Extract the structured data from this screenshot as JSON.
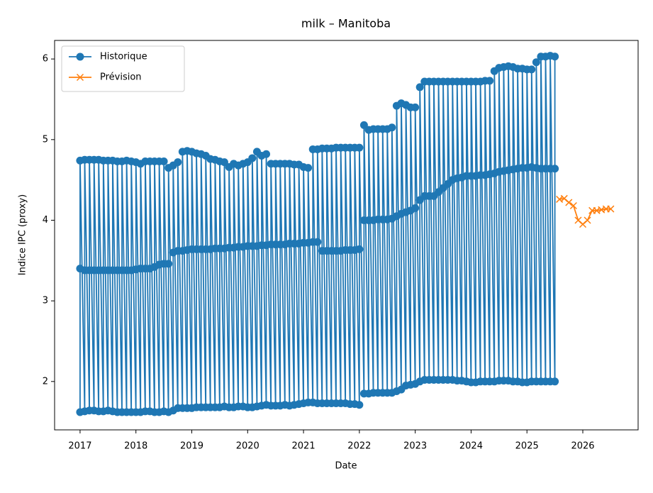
{
  "chart_data": {
    "type": "line",
    "title": "milk – Manitoba",
    "x_label": "Date",
    "y_label": "Indice IPC (proxy)",
    "xlim": [
      2016.544,
      2026.99
    ],
    "ylim": [
      1.4,
      6.23
    ],
    "xticks": [
      2017,
      2018,
      2019,
      2020,
      2021,
      2022,
      2023,
      2024,
      2025,
      2026
    ],
    "yticks": [
      2,
      3,
      4,
      5,
      6
    ],
    "legend": "upper left",
    "series": [
      {
        "name": "Historique",
        "color": "#1f77b4",
        "marker": "o",
        "x": [
          2017,
          2017,
          2017,
          2017.083,
          2017.083,
          2017.083,
          2017.167,
          2017.167,
          2017.167,
          2017.25,
          2017.25,
          2017.25,
          2017.333,
          2017.333,
          2017.333,
          2017.417,
          2017.417,
          2017.417,
          2017.5,
          2017.5,
          2017.5,
          2017.583,
          2017.583,
          2017.583,
          2017.667,
          2017.667,
          2017.667,
          2017.75,
          2017.75,
          2017.75,
          2017.833,
          2017.833,
          2017.833,
          2017.917,
          2017.917,
          2017.917,
          2018,
          2018,
          2018,
          2018.083,
          2018.083,
          2018.083,
          2018.167,
          2018.167,
          2018.167,
          2018.25,
          2018.25,
          2018.25,
          2018.333,
          2018.333,
          2018.333,
          2018.417,
          2018.417,
          2018.417,
          2018.5,
          2018.5,
          2018.5,
          2018.583,
          2018.583,
          2018.583,
          2018.667,
          2018.667,
          2018.667,
          2018.75,
          2018.75,
          2018.75,
          2018.833,
          2018.833,
          2018.833,
          2018.917,
          2018.917,
          2018.917,
          2019,
          2019,
          2019,
          2019.083,
          2019.083,
          2019.083,
          2019.167,
          2019.167,
          2019.167,
          2019.25,
          2019.25,
          2019.25,
          2019.333,
          2019.333,
          2019.333,
          2019.417,
          2019.417,
          2019.417,
          2019.5,
          2019.5,
          2019.5,
          2019.583,
          2019.583,
          2019.583,
          2019.667,
          2019.667,
          2019.667,
          2019.75,
          2019.75,
          2019.75,
          2019.833,
          2019.833,
          2019.833,
          2019.917,
          2019.917,
          2019.917,
          2020,
          2020,
          2020,
          2020.083,
          2020.083,
          2020.083,
          2020.167,
          2020.167,
          2020.167,
          2020.25,
          2020.25,
          2020.25,
          2020.333,
          2020.333,
          2020.333,
          2020.417,
          2020.417,
          2020.417,
          2020.5,
          2020.5,
          2020.5,
          2020.583,
          2020.583,
          2020.583,
          2020.667,
          2020.667,
          2020.667,
          2020.75,
          2020.75,
          2020.75,
          2020.833,
          2020.833,
          2020.833,
          2020.917,
          2020.917,
          2020.917,
          2021,
          2021,
          2021,
          2021.083,
          2021.083,
          2021.083,
          2021.167,
          2021.167,
          2021.167,
          2021.25,
          2021.25,
          2021.25,
          2021.333,
          2021.333,
          2021.333,
          2021.417,
          2021.417,
          2021.417,
          2021.5,
          2021.5,
          2021.5,
          2021.583,
          2021.583,
          2021.583,
          2021.667,
          2021.667,
          2021.667,
          2021.75,
          2021.75,
          2021.75,
          2021.833,
          2021.833,
          2021.833,
          2021.917,
          2021.917,
          2021.917,
          2022,
          2022,
          2022,
          2022.083,
          2022.083,
          2022.083,
          2022.167,
          2022.167,
          2022.167,
          2022.25,
          2022.25,
          2022.25,
          2022.333,
          2022.333,
          2022.333,
          2022.417,
          2022.417,
          2022.417,
          2022.5,
          2022.5,
          2022.5,
          2022.583,
          2022.583,
          2022.583,
          2022.667,
          2022.667,
          2022.667,
          2022.75,
          2022.75,
          2022.75,
          2022.833,
          2022.833,
          2022.833,
          2022.917,
          2022.917,
          2022.917,
          2023,
          2023,
          2023,
          2023.083,
          2023.083,
          2023.083,
          2023.167,
          2023.167,
          2023.167,
          2023.25,
          2023.25,
          2023.25,
          2023.333,
          2023.333,
          2023.333,
          2023.417,
          2023.417,
          2023.417,
          2023.5,
          2023.5,
          2023.5,
          2023.583,
          2023.583,
          2023.583,
          2023.667,
          2023.667,
          2023.667,
          2023.75,
          2023.75,
          2023.75,
          2023.833,
          2023.833,
          2023.833,
          2023.917,
          2023.917,
          2023.917,
          2024,
          2024,
          2024,
          2024.083,
          2024.083,
          2024.083,
          2024.167,
          2024.167,
          2024.167,
          2024.25,
          2024.25,
          2024.25,
          2024.333,
          2024.333,
          2024.333,
          2024.417,
          2024.417,
          2024.417,
          2024.5,
          2024.5,
          2024.5,
          2024.583,
          2024.583,
          2024.583,
          2024.667,
          2024.667,
          2024.667,
          2024.75,
          2024.75,
          2024.75,
          2024.833,
          2024.833,
          2024.833,
          2024.917,
          2024.917,
          2024.917,
          2025,
          2025,
          2025,
          2025.083,
          2025.083,
          2025.083,
          2025.167,
          2025.167,
          2025.167,
          2025.25,
          2025.25,
          2025.25,
          2025.333,
          2025.333,
          2025.333,
          2025.417,
          2025.417,
          2025.417,
          2025.5,
          2025.5,
          2025.5
        ],
        "values": [
          1.62,
          3.4,
          4.74,
          1.63,
          3.38,
          4.75,
          1.64,
          3.38,
          4.75,
          1.64,
          3.38,
          4.75,
          1.63,
          3.38,
          4.75,
          1.63,
          3.38,
          4.74,
          1.64,
          3.38,
          4.74,
          1.63,
          3.38,
          4.74,
          1.62,
          3.38,
          4.73,
          1.62,
          3.38,
          4.73,
          1.62,
          3.38,
          4.74,
          1.62,
          3.38,
          4.73,
          1.62,
          3.39,
          4.72,
          1.62,
          3.4,
          4.7,
          1.63,
          3.4,
          4.73,
          1.63,
          3.4,
          4.73,
          1.62,
          3.42,
          4.73,
          1.62,
          3.45,
          4.73,
          1.63,
          3.46,
          4.73,
          1.62,
          3.46,
          4.65,
          1.64,
          3.6,
          4.68,
          1.67,
          3.62,
          4.72,
          1.67,
          3.62,
          4.85,
          1.67,
          3.63,
          4.86,
          1.67,
          3.64,
          4.85,
          1.68,
          3.64,
          4.83,
          1.68,
          3.64,
          4.82,
          1.68,
          3.64,
          4.8,
          1.68,
          3.64,
          4.76,
          1.68,
          3.65,
          4.75,
          1.68,
          3.65,
          4.73,
          1.69,
          3.65,
          4.72,
          1.68,
          3.66,
          4.66,
          1.68,
          3.66,
          4.7,
          1.69,
          3.67,
          4.68,
          1.69,
          3.67,
          4.7,
          1.68,
          3.68,
          4.72,
          1.68,
          3.68,
          4.77,
          1.69,
          3.68,
          4.85,
          1.7,
          3.69,
          4.8,
          1.71,
          3.69,
          4.82,
          1.7,
          3.7,
          4.7,
          1.7,
          3.7,
          4.7,
          1.7,
          3.7,
          4.7,
          1.71,
          3.7,
          4.7,
          1.7,
          3.71,
          4.7,
          1.71,
          3.71,
          4.69,
          1.72,
          3.71,
          4.69,
          1.73,
          3.72,
          4.66,
          1.74,
          3.72,
          4.65,
          1.74,
          3.73,
          4.88,
          1.73,
          3.73,
          4.88,
          1.73,
          3.62,
          4.89,
          1.73,
          3.62,
          4.89,
          1.73,
          3.62,
          4.89,
          1.73,
          3.62,
          4.9,
          1.73,
          3.62,
          4.9,
          1.73,
          3.63,
          4.9,
          1.72,
          3.63,
          4.9,
          1.72,
          3.63,
          4.9,
          1.71,
          3.64,
          4.9,
          1.85,
          4.0,
          5.18,
          1.85,
          4.0,
          5.12,
          1.86,
          4.0,
          5.13,
          1.86,
          4.01,
          5.13,
          1.86,
          4.01,
          5.13,
          1.86,
          4.01,
          5.13,
          1.86,
          4.02,
          5.15,
          1.88,
          4.05,
          5.42,
          1.9,
          4.08,
          5.45,
          1.95,
          4.1,
          5.43,
          1.96,
          4.12,
          5.4,
          1.97,
          4.15,
          5.4,
          2.0,
          4.25,
          5.65,
          2.02,
          4.3,
          5.72,
          2.02,
          4.3,
          5.72,
          2.02,
          4.3,
          5.72,
          2.02,
          4.35,
          5.72,
          2.02,
          4.4,
          5.72,
          2.02,
          4.45,
          5.72,
          2.02,
          4.5,
          5.72,
          2.01,
          4.52,
          5.72,
          2.01,
          4.53,
          5.72,
          2.0,
          4.55,
          5.72,
          1.99,
          4.55,
          5.72,
          1.99,
          4.55,
          5.72,
          2.0,
          4.56,
          5.72,
          2.0,
          4.56,
          5.73,
          2.0,
          4.57,
          5.73,
          2.0,
          4.58,
          5.85,
          2.01,
          4.6,
          5.89,
          2.01,
          4.61,
          5.9,
          2.01,
          4.62,
          5.91,
          2.0,
          4.63,
          5.9,
          2.0,
          4.64,
          5.88,
          1.99,
          4.65,
          5.88,
          1.99,
          4.65,
          5.87,
          2.0,
          4.66,
          5.87,
          2.0,
          4.65,
          5.96,
          2.0,
          4.64,
          6.03,
          2.0,
          4.64,
          6.03,
          2.0,
          4.64,
          6.04,
          2.0,
          4.64,
          6.03
        ]
      },
      {
        "name": "Prévision",
        "color": "#ff7f0e",
        "marker": "x",
        "x": [
          2025.583,
          2025.667,
          2025.75,
          2025.833,
          2025.917,
          2026,
          2026.083,
          2026.167,
          2026.25,
          2026.333,
          2026.417,
          2026.5
        ],
        "values": [
          4.26,
          4.27,
          4.22,
          4.18,
          4.0,
          3.95,
          4.0,
          4.12,
          4.12,
          4.13,
          4.14,
          4.14
        ]
      }
    ]
  }
}
